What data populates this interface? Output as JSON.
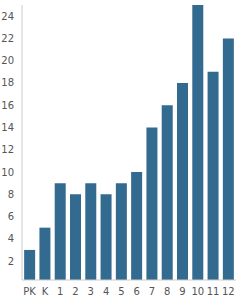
{
  "chart_data": {
    "type": "bar",
    "categories": [
      "PK",
      "K",
      "1",
      "2",
      "3",
      "4",
      "5",
      "6",
      "7",
      "8",
      "9",
      "10",
      "11",
      "12"
    ],
    "values": [
      3,
      5,
      9,
      8,
      9,
      8,
      9,
      10,
      14,
      16,
      18,
      25,
      19,
      22
    ],
    "color": "#336a90",
    "ylim": [
      0.3,
      25
    ],
    "yticks": [
      2,
      4,
      6,
      8,
      10,
      12,
      14,
      16,
      18,
      20,
      22,
      24
    ],
    "grid": false
  }
}
